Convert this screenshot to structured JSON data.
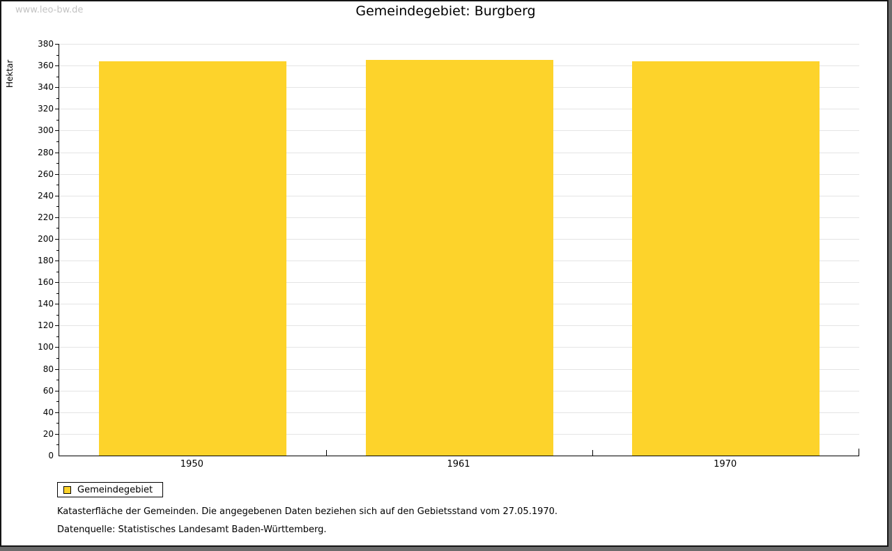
{
  "watermark": "www.leo-bw.de",
  "title": "Gemeindegebiet: Burgberg",
  "chart_data": {
    "type": "bar",
    "title": "Gemeindegebiet: Burgberg",
    "categories": [
      "1950",
      "1961",
      "1970"
    ],
    "series": [
      {
        "name": "Gemeindegebiet",
        "values": [
          364,
          365,
          364
        ],
        "color": "#fdd32b"
      }
    ],
    "xlabel": "",
    "ylabel": "Hektar",
    "ylim": [
      0,
      380
    ],
    "y_major_step": 20,
    "y_minor_step": 10,
    "grid": true,
    "legend_position": "bottom-left"
  },
  "legend": {
    "items": [
      {
        "label": "Gemeindegebiet",
        "color": "#fdd32b"
      }
    ]
  },
  "footnotes": {
    "line1": "Katasterfläche der Gemeinden. Die angegebenen Daten beziehen sich auf den Gebietsstand vom 27.05.1970.",
    "line2": "Datenquelle: Statistisches Landesamt Baden-Württemberg."
  },
  "colors": {
    "bar": "#fdd32b",
    "gridline": "#e4e4e4",
    "axis": "#000000",
    "watermark_text": "#c3c3c3",
    "frame_border": "#141414",
    "frame_shadow": "#6b6b6b"
  }
}
